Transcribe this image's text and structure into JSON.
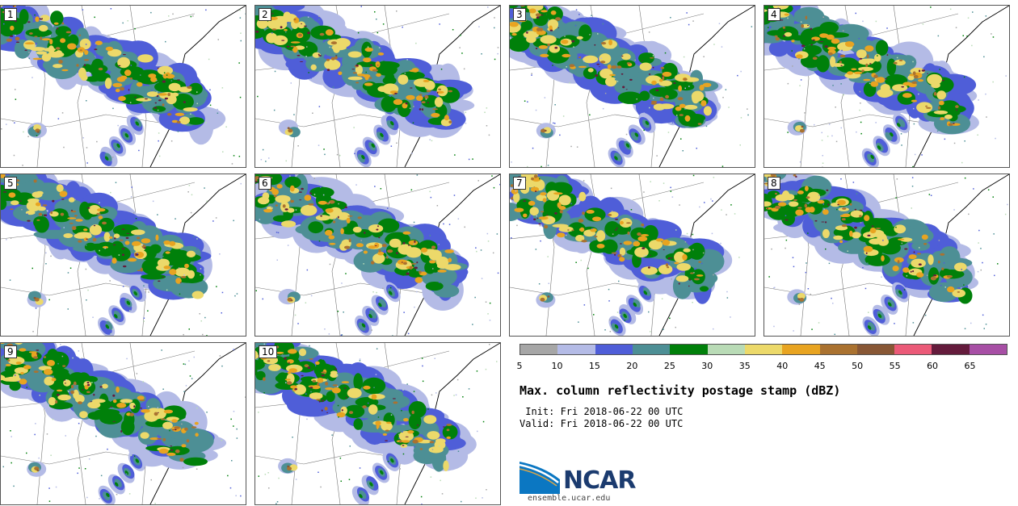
{
  "panels": [
    {
      "label": "1"
    },
    {
      "label": "2"
    },
    {
      "label": "3"
    },
    {
      "label": "4"
    },
    {
      "label": "5"
    },
    {
      "label": "6"
    },
    {
      "label": "7"
    },
    {
      "label": "8"
    },
    {
      "label": "9"
    },
    {
      "label": "10"
    }
  ],
  "colorbar": {
    "colors": [
      "#a6a6a6",
      "#b4bbe6",
      "#4f5ed8",
      "#4d8f95",
      "#00800a",
      "#b9dbb6",
      "#ecd96a",
      "#e8a421",
      "#aa7230",
      "#885735",
      "#eb5a78",
      "#641b3c",
      "#a74fa5"
    ],
    "ticks": [
      "5",
      "10",
      "15",
      "20",
      "25",
      "30",
      "35",
      "40",
      "45",
      "50",
      "55",
      "60",
      "65"
    ]
  },
  "title": "Max. column reflectivity postage stamp (dBZ)",
  "init_line": " Init: Fri 2018-06-22 00 UTC",
  "valid_line": "Valid: Fri 2018-06-22 00 UTC",
  "logo": {
    "text": "NCAR",
    "url": "ensemble.ucar.edu",
    "blue": "#0b77c2",
    "navy": "#1b3b6f"
  }
}
